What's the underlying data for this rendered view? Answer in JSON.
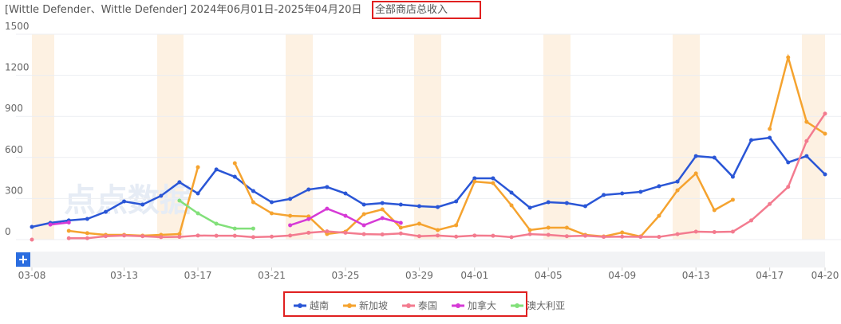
{
  "header": {
    "title": "[Wittle Defender、Wittle Defender] 2024年06月01日-2025年04月20日",
    "metric": "全部商店总收入"
  },
  "watermark": "点点数据",
  "chart_data": {
    "type": "line",
    "x": [
      "03-08",
      null,
      null,
      null,
      null,
      "03-13",
      null,
      null,
      null,
      "03-17",
      null,
      null,
      null,
      "03-21",
      null,
      null,
      null,
      "03-25",
      null,
      null,
      null,
      "03-29",
      null,
      null,
      "04-01",
      null,
      null,
      null,
      "04-05",
      null,
      null,
      null,
      "04-09",
      null,
      null,
      null,
      "04-13",
      null,
      null,
      null,
      "04-17",
      null,
      null,
      "04-20"
    ],
    "ylim": [
      0,
      1500
    ],
    "yticks": [
      0,
      300,
      600,
      900,
      1200,
      1500
    ],
    "grid": true,
    "series": [
      {
        "name": "越南",
        "color": "#2a56d6",
        "values": [
          93,
          122,
          140,
          151,
          203,
          279,
          256,
          320,
          419,
          337,
          512,
          459,
          355,
          273,
          297,
          366,
          384,
          337,
          256,
          267,
          256,
          244,
          238,
          279,
          448,
          448,
          343,
          233,
          273,
          267,
          244,
          326,
          337,
          349,
          390,
          424,
          610,
          599,
          459,
          727,
          744,
          564,
          610,
          477
        ]
      },
      {
        "name": "新加坡",
        "color": "#f5a32f",
        "values": [
          null,
          null,
          64,
          47,
          35,
          35,
          29,
          35,
          41,
          529,
          null,
          558,
          273,
          192,
          174,
          169,
          41,
          58,
          186,
          221,
          87,
          116,
          70,
          105,
          424,
          413,
          250,
          70,
          87,
          87,
          35,
          23,
          52,
          23,
          174,
          360,
          483,
          215,
          291,
          null,
          808,
          1331,
          860,
          773
        ]
      },
      {
        "name": "泰国",
        "color": "#f37b8f",
        "values": [
          0,
          null,
          10,
          10,
          25,
          30,
          25,
          18,
          20,
          30,
          28,
          28,
          18,
          22,
          30,
          50,
          60,
          50,
          40,
          38,
          45,
          25,
          30,
          22,
          30,
          28,
          18,
          40,
          35,
          25,
          28,
          20,
          22,
          20,
          20,
          40,
          58,
          55,
          58,
          140,
          260,
          385,
          720,
          920
        ]
      },
      {
        "name": "加拿大",
        "color": "#d63ad6",
        "values": [
          null,
          110,
          125,
          null,
          null,
          null,
          null,
          null,
          null,
          null,
          null,
          null,
          null,
          null,
          105,
          150,
          226,
          174,
          105,
          157,
          122,
          null,
          null,
          null,
          null,
          null,
          null,
          null,
          null,
          null,
          null,
          null,
          null,
          null,
          null,
          null,
          null,
          null,
          null,
          null,
          null,
          null,
          null,
          null
        ]
      },
      {
        "name": "澳大利亚",
        "color": "#82e07a",
        "values": [
          null,
          null,
          null,
          null,
          null,
          null,
          null,
          null,
          285,
          192,
          116,
          81,
          81,
          null,
          null,
          null,
          null,
          null,
          null,
          null,
          null,
          null,
          null,
          null,
          null,
          null,
          null,
          null,
          null,
          null,
          null,
          null,
          null,
          null,
          null,
          null,
          null,
          null,
          null,
          null,
          null,
          null,
          null,
          null
        ]
      }
    ]
  }
}
